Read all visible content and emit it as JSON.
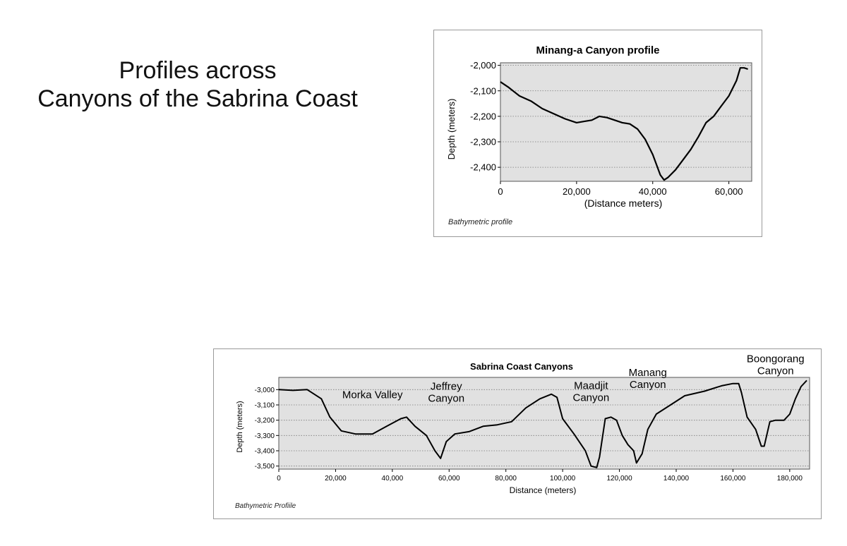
{
  "slide": {
    "title_line1": "Profiles across",
    "title_line2": "Canyons of the Sabrina Coast"
  },
  "colors": {
    "plot_background": "#e1e1e1",
    "line": "#000000",
    "grid": "#7a7a7a"
  },
  "chart_data": [
    {
      "id": "minang",
      "type": "line",
      "title": "Minang-a Canyon profile",
      "xlabel": "(Distance meters)",
      "ylabel": "Depth (meters)",
      "footer": "Bathymetric profile",
      "xlim": [
        0,
        66000
      ],
      "ylim": [
        -2455,
        -1990
      ],
      "xticks": [
        0,
        20000,
        40000,
        60000
      ],
      "xtick_labels": [
        "0",
        "20,000",
        "40,000",
        "60,000"
      ],
      "yticks": [
        -2000,
        -2100,
        -2200,
        -2300,
        -2400
      ],
      "ytick_labels": [
        "-2,000",
        "-2,100",
        "-2,200",
        "-2,300",
        "-2,400"
      ],
      "grid": "horizontal-dotted",
      "legend": "none",
      "series": [
        {
          "x": [
            0,
            2000,
            5000,
            8000,
            11000,
            14000,
            17000,
            20000,
            22000,
            24000,
            26000,
            28000,
            30000,
            32000,
            34000,
            36000,
            38000,
            40000,
            42000,
            43000,
            44000,
            46000,
            48000,
            50000,
            52000,
            54000,
            56000,
            58000,
            60000,
            62000,
            63000,
            64000,
            65000
          ],
          "y": [
            -2065,
            -2085,
            -2120,
            -2140,
            -2170,
            -2190,
            -2210,
            -2225,
            -2220,
            -2215,
            -2200,
            -2205,
            -2215,
            -2225,
            -2230,
            -2250,
            -2290,
            -2350,
            -2430,
            -2450,
            -2440,
            -2410,
            -2370,
            -2330,
            -2280,
            -2225,
            -2200,
            -2160,
            -2120,
            -2060,
            -2010,
            -2010,
            -2015
          ]
        }
      ]
    },
    {
      "id": "sabrina",
      "type": "line",
      "title": "Sabrina Coast Canyons",
      "xlabel": "Distance (meters)",
      "ylabel": "Depth (meters)",
      "footer": "Bathymetric Profiile",
      "xlim": [
        0,
        187000
      ],
      "ylim": [
        -3520,
        -2920
      ],
      "xticks": [
        0,
        20000,
        40000,
        60000,
        80000,
        100000,
        120000,
        140000,
        160000,
        180000
      ],
      "xtick_labels": [
        "0",
        "20,000",
        "40,000",
        "60,000",
        "80,000",
        "100,000",
        "120,000",
        "140,000",
        "160,000",
        "180,000"
      ],
      "yticks": [
        -3000,
        -3100,
        -3200,
        -3300,
        -3400,
        -3500
      ],
      "ytick_labels": [
        "-3,000",
        "-3,100",
        "-3,200",
        "-3,300",
        "-3,400",
        "-3,500"
      ],
      "grid": "horizontal-dotted",
      "legend": "none",
      "annotations": [
        {
          "text": "Morka Valley",
          "x": 33000,
          "y": -3055
        },
        {
          "text": "Jeffrey\nCanyon",
          "x": 59000,
          "y": -3000
        },
        {
          "text": "Maadjit\nCanyon",
          "x": 110000,
          "y": -2995
        },
        {
          "text": "Manang\nCanyon",
          "x": 130000,
          "y": -2910
        },
        {
          "text": "Boongorang\nCanyon",
          "x": 175000,
          "y": -2820
        }
      ],
      "series": [
        {
          "x": [
            0,
            5000,
            10000,
            15000,
            18000,
            22000,
            27000,
            33000,
            38000,
            43000,
            45000,
            48000,
            52000,
            55000,
            57000,
            59000,
            62000,
            67000,
            72000,
            77000,
            82000,
            87000,
            92000,
            96000,
            98000,
            100000,
            104000,
            108000,
            110000,
            112000,
            113000,
            115000,
            117000,
            119000,
            121000,
            123000,
            125000,
            126000,
            128000,
            130000,
            133000,
            138000,
            143000,
            150000,
            156000,
            160000,
            162000,
            163000,
            165000,
            168000,
            170000,
            171000,
            173000,
            175000,
            178000,
            180000,
            182000,
            184000,
            186000
          ],
          "y": [
            -3000,
            -3005,
            -3000,
            -3060,
            -3180,
            -3270,
            -3290,
            -3290,
            -3240,
            -3190,
            -3180,
            -3240,
            -3300,
            -3400,
            -3450,
            -3340,
            -3290,
            -3275,
            -3240,
            -3230,
            -3210,
            -3120,
            -3060,
            -3030,
            -3050,
            -3190,
            -3290,
            -3400,
            -3500,
            -3510,
            -3440,
            -3190,
            -3180,
            -3200,
            -3300,
            -3360,
            -3400,
            -3480,
            -3420,
            -3260,
            -3160,
            -3100,
            -3040,
            -3010,
            -2975,
            -2960,
            -2960,
            -3020,
            -3180,
            -3260,
            -3370,
            -3370,
            -3210,
            -3200,
            -3200,
            -3160,
            -3060,
            -2980,
            -2940
          ]
        }
      ]
    }
  ]
}
